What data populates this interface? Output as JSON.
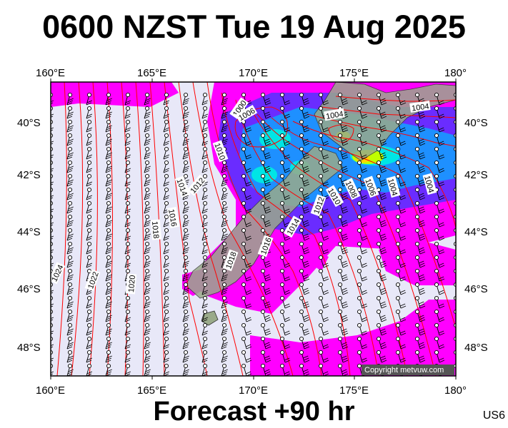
{
  "title": "0600 NZST Tue 19 Aug 2025",
  "footer": "Forecast +90 hr",
  "code": "US6",
  "copyright": "Copyright metvuw.com",
  "lon_labels": [
    "160°E",
    "165°E",
    "170°E",
    "175°E",
    "180°"
  ],
  "lat_labels": [
    "40°S",
    "42°S",
    "44°S",
    "46°S",
    "48°S"
  ],
  "map": {
    "lon_range": [
      160,
      180
    ],
    "lat_range": [
      -49,
      -38.5
    ],
    "colors": {
      "sea": "#e8e8f8",
      "rain_light": "#ff00ff",
      "rain_mid": "#6a2cff",
      "rain_heavy": "#1e90ff",
      "rain_strong": "#00e5e5",
      "rain_extreme": "#c0ff00",
      "land": "#9aaa8a",
      "isobar": "#ff0000",
      "wind_barb": "#000000"
    },
    "isobars": [
      {
        "label": "1000"
      },
      {
        "label": "1006"
      },
      {
        "label": "1004"
      },
      {
        "label": "1004"
      },
      {
        "label": "1010"
      },
      {
        "label": "1012"
      },
      {
        "label": "1014"
      },
      {
        "label": "1016"
      },
      {
        "label": "1018"
      },
      {
        "label": "1018"
      },
      {
        "label": "1020"
      },
      {
        "label": "1022"
      },
      {
        "label": "1024"
      },
      {
        "label": "1012"
      },
      {
        "label": "1014"
      },
      {
        "label": "1016"
      },
      {
        "label": "1018"
      },
      {
        "label": "1010"
      },
      {
        "label": "1008"
      },
      {
        "label": "1006"
      },
      {
        "label": "1004"
      },
      {
        "label": "1004"
      }
    ]
  }
}
